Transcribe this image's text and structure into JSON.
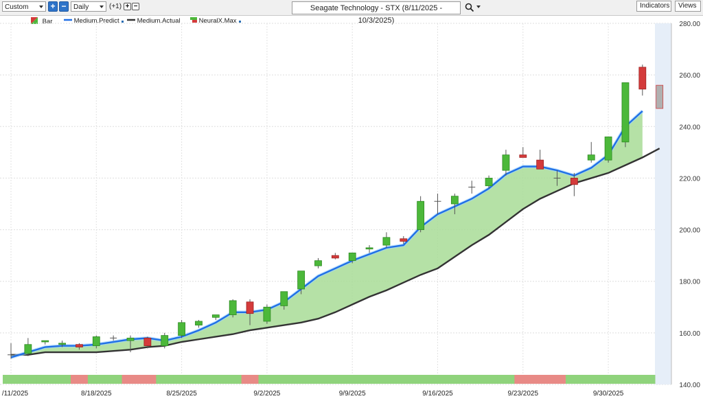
{
  "toolbar": {
    "period": "Custom",
    "interval": "Daily",
    "offset": "(+1)",
    "title": "Seagate Technology - STX (8/11/2025 - 10/3/2025)",
    "indicators": "Indicators",
    "views": "Views"
  },
  "legend": [
    {
      "label": "Bar",
      "color": "#2ea043",
      "icon": "bar-swatch-icon"
    },
    {
      "label": "Medium.Predict",
      "color": "#1f6fe6",
      "icon": "line-swatch-icon"
    },
    {
      "label": "Medium.Actual",
      "color": "#333333",
      "icon": "line-swatch-icon"
    },
    {
      "label": "NeuralX.Max",
      "color": "#d43b3b",
      "icon": "neural-swatch-icon"
    }
  ],
  "colors": {
    "up": "#4cb83a",
    "down": "#d43b3b",
    "predict": "#1f6fe6",
    "actual": "#333333",
    "fill": "#a8dc96",
    "band_up": "#8fd37c",
    "band_down": "#e88a86"
  },
  "chart_data": {
    "type": "candlestick",
    "y_ticks": [
      "280.00",
      "260.00",
      "240.00",
      "220.00",
      "200.00",
      "180.00",
      "160.00",
      "140.00"
    ],
    "ylim": [
      140,
      280
    ],
    "x_labels": [
      "/11/2025",
      "8/18/2025",
      "8/25/2025",
      "9/2/2025",
      "9/9/2025",
      "9/16/2025",
      "9/23/2025",
      "9/30/2025"
    ],
    "dates": [
      "8/11",
      "8/12",
      "8/13",
      "8/14",
      "8/15",
      "8/18",
      "8/19",
      "8/20",
      "8/21",
      "8/22",
      "8/25",
      "8/26",
      "8/27",
      "8/28",
      "8/29",
      "9/2",
      "9/3",
      "9/4",
      "9/5",
      "9/8",
      "9/9",
      "9/10",
      "9/11",
      "9/12",
      "9/15",
      "9/16",
      "9/17",
      "9/18",
      "9/19",
      "9/22",
      "9/23",
      "9/24",
      "9/25",
      "9/26",
      "9/29",
      "9/30",
      "10/1",
      "10/2",
      "10/3"
    ],
    "candles": [
      {
        "o": 151.5,
        "h": 156,
        "l": 150,
        "c": 151.5
      },
      {
        "o": 152,
        "h": 158,
        "l": 151,
        "c": 155.5
      },
      {
        "o": 156.5,
        "h": 157,
        "l": 155.5,
        "c": 157
      },
      {
        "o": 155.5,
        "h": 157,
        "l": 154.5,
        "c": 156
      },
      {
        "o": 155.5,
        "h": 156,
        "l": 153.5,
        "c": 154.5
      },
      {
        "o": 155,
        "h": 159,
        "l": 154,
        "c": 158.5
      },
      {
        "o": 158,
        "h": 159,
        "l": 157,
        "c": 158
      },
      {
        "o": 157,
        "h": 159,
        "l": 152.5,
        "c": 158
      },
      {
        "o": 158,
        "h": 158.5,
        "l": 154,
        "c": 155
      },
      {
        "o": 155,
        "h": 160,
        "l": 154,
        "c": 159
      },
      {
        "o": 159,
        "h": 165,
        "l": 158,
        "c": 164
      },
      {
        "o": 163,
        "h": 165,
        "l": 162,
        "c": 164.5
      },
      {
        "o": 166,
        "h": 167,
        "l": 165,
        "c": 167
      },
      {
        "o": 167,
        "h": 173,
        "l": 166,
        "c": 172.5
      },
      {
        "o": 172,
        "h": 173,
        "l": 163,
        "c": 167.5
      },
      {
        "o": 164.5,
        "h": 171,
        "l": 163.5,
        "c": 170
      },
      {
        "o": 170.5,
        "h": 176,
        "l": 169,
        "c": 176
      },
      {
        "o": 177,
        "h": 184,
        "l": 175,
        "c": 184
      },
      {
        "o": 186,
        "h": 189,
        "l": 185,
        "c": 188
      },
      {
        "o": 190,
        "h": 191,
        "l": 188.5,
        "c": 189
      },
      {
        "o": 188,
        "h": 191,
        "l": 187,
        "c": 191
      },
      {
        "o": 192.5,
        "h": 194,
        "l": 191,
        "c": 193
      },
      {
        "o": 194,
        "h": 199,
        "l": 193,
        "c": 197
      },
      {
        "o": 196.5,
        "h": 197.5,
        "l": 194.5,
        "c": 195.5
      },
      {
        "o": 200,
        "h": 213,
        "l": 199,
        "c": 211
      },
      {
        "o": 211,
        "h": 214,
        "l": 206,
        "c": 211
      },
      {
        "o": 210,
        "h": 214,
        "l": 206,
        "c": 213
      },
      {
        "o": 216.5,
        "h": 219,
        "l": 214,
        "c": 216.5
      },
      {
        "o": 217,
        "h": 221,
        "l": 216,
        "c": 220
      },
      {
        "o": 223,
        "h": 231,
        "l": 221,
        "c": 229
      },
      {
        "o": 229,
        "h": 232,
        "l": 228,
        "c": 228
      },
      {
        "o": 227,
        "h": 231,
        "l": 224,
        "c": 223.5
      },
      {
        "o": 220,
        "h": 223,
        "l": 217,
        "c": 220
      },
      {
        "o": 220,
        "h": 222,
        "l": 213,
        "c": 217.5
      },
      {
        "o": 227,
        "h": 234,
        "l": 226,
        "c": 229
      },
      {
        "o": 227,
        "h": 236,
        "l": 226,
        "c": 236
      },
      {
        "o": 234,
        "h": 257,
        "l": 232,
        "c": 257
      },
      {
        "o": 263,
        "h": 264,
        "l": 252,
        "c": 254.5
      },
      {
        "o": 256,
        "h": 256,
        "l": 247,
        "c": 247
      }
    ],
    "series": [
      {
        "name": "Medium.Predict",
        "values": [
          150.5,
          152.5,
          154.5,
          155,
          155,
          155.5,
          156.5,
          157.5,
          158,
          157,
          158.5,
          161,
          164,
          168,
          168,
          169,
          172,
          177,
          182,
          185,
          188,
          190.5,
          193,
          194,
          201,
          206,
          209,
          212,
          216,
          221.5,
          224.5,
          224.5,
          223,
          221,
          224,
          229,
          240,
          246,
          null
        ]
      },
      {
        "name": "Medium.Actual",
        "values": [
          151.5,
          151.5,
          152.5,
          152.5,
          152.5,
          152.5,
          153,
          153.5,
          154.5,
          155,
          156.5,
          157.5,
          158.5,
          159.5,
          161,
          162,
          163,
          164,
          165.5,
          168,
          171,
          174,
          176.5,
          179.5,
          182.5,
          185,
          189.5,
          194,
          198,
          203,
          208,
          212,
          215,
          218,
          220,
          222,
          225,
          228,
          231.5
        ]
      }
    ],
    "signal_band": [
      "up",
      "up",
      "up",
      "up",
      "down",
      "up",
      "up",
      "down",
      "down",
      "up",
      "up",
      "up",
      "up",
      "up",
      "down",
      "up",
      "up",
      "up",
      "up",
      "up",
      "up",
      "up",
      "up",
      "up",
      "up",
      "up",
      "up",
      "up",
      "up",
      "up",
      "down",
      "down",
      "down",
      "up",
      "up",
      "up",
      "up",
      "up",
      "up"
    ]
  }
}
